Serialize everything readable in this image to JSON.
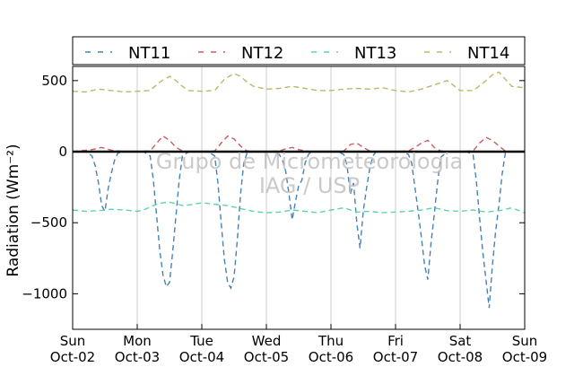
{
  "chart_data": {
    "type": "line",
    "ylabel": "Radiation (Wm⁻²)",
    "ylim": [
      -1250,
      600
    ],
    "yticks": [
      -1000,
      -500,
      0,
      500
    ],
    "ytick_labels": [
      "−1000",
      "−500",
      "0",
      "500"
    ],
    "xlim_days": [
      0,
      7
    ],
    "x_ticks": [
      {
        "day": "Sun",
        "date": "Oct-02"
      },
      {
        "day": "Mon",
        "date": "Oct-03"
      },
      {
        "day": "Tue",
        "date": "Oct-04"
      },
      {
        "day": "Wed",
        "date": "Oct-05"
      },
      {
        "day": "Thu",
        "date": "Oct-06"
      },
      {
        "day": "Fri",
        "date": "Oct-07"
      },
      {
        "day": "Sat",
        "date": "Oct-08"
      },
      {
        "day": "Sun",
        "date": "Oct-09"
      }
    ],
    "grid": "vertical",
    "legend_position": "top",
    "zero_line": true,
    "watermark": [
      "Grupo de Micrometeorologia",
      "IAG / USP"
    ],
    "series": [
      {
        "name": "NT11",
        "color": "#4682b4",
        "style": "dashed",
        "x": [
          0.0,
          0.2,
          0.3,
          0.35,
          0.4,
          0.45,
          0.5,
          0.55,
          0.6,
          0.65,
          0.7,
          0.8,
          0.9,
          1.0,
          1.1,
          1.2,
          1.25,
          1.3,
          1.35,
          1.4,
          1.45,
          1.5,
          1.55,
          1.6,
          1.65,
          1.7,
          1.8,
          1.9,
          2.0,
          2.1,
          2.2,
          2.25,
          2.3,
          2.35,
          2.4,
          2.45,
          2.5,
          2.55,
          2.6,
          2.65,
          2.7,
          2.8,
          2.9,
          3.0,
          3.1,
          3.2,
          3.25,
          3.3,
          3.35,
          3.4,
          3.45,
          3.5,
          3.55,
          3.6,
          3.65,
          3.7,
          3.8,
          3.9,
          4.0,
          4.1,
          4.2,
          4.25,
          4.3,
          4.35,
          4.4,
          4.45,
          4.5,
          4.55,
          4.6,
          4.65,
          4.7,
          4.8,
          4.9,
          5.0,
          5.1,
          5.2,
          5.25,
          5.3,
          5.35,
          5.4,
          5.45,
          5.5,
          5.55,
          5.6,
          5.65,
          5.7,
          5.8,
          5.9,
          6.0,
          6.1,
          6.2,
          6.25,
          6.3,
          6.35,
          6.4,
          6.45,
          6.5,
          6.55,
          6.6,
          6.65,
          6.7,
          6.8,
          7.0
        ],
        "y": [
          0,
          0,
          -30,
          -100,
          -220,
          -380,
          -420,
          -260,
          -150,
          -60,
          -10,
          0,
          0,
          0,
          0,
          -30,
          -200,
          -450,
          -700,
          -870,
          -950,
          -920,
          -700,
          -450,
          -200,
          -30,
          0,
          0,
          0,
          0,
          -30,
          -220,
          -500,
          -760,
          -920,
          -960,
          -880,
          -620,
          -300,
          -80,
          -10,
          0,
          0,
          0,
          0,
          -20,
          -60,
          -140,
          -300,
          -480,
          -350,
          -240,
          -200,
          -80,
          -20,
          0,
          0,
          0,
          0,
          0,
          -20,
          -100,
          -300,
          -220,
          -500,
          -680,
          -420,
          -260,
          -120,
          -30,
          0,
          0,
          0,
          0,
          0,
          -20,
          -80,
          -250,
          -420,
          -600,
          -800,
          -900,
          -640,
          -440,
          -220,
          -40,
          0,
          0,
          0,
          0,
          -20,
          -200,
          -460,
          -700,
          -900,
          -1100,
          -800,
          -560,
          -380,
          -160,
          -10,
          0,
          0
        ]
      },
      {
        "name": "NT12",
        "color": "#cd5c5c",
        "style": "dashed",
        "x": [
          0.0,
          0.3,
          0.45,
          0.6,
          0.8,
          1.0,
          1.2,
          1.3,
          1.4,
          1.5,
          1.6,
          1.7,
          1.8,
          2.0,
          2.2,
          2.3,
          2.4,
          2.5,
          2.6,
          2.7,
          2.8,
          3.0,
          3.2,
          3.3,
          3.4,
          3.5,
          3.6,
          3.7,
          3.8,
          4.0,
          4.2,
          4.3,
          4.4,
          4.5,
          4.6,
          4.7,
          4.8,
          5.0,
          5.2,
          5.3,
          5.4,
          5.5,
          5.6,
          5.7,
          5.8,
          6.0,
          6.2,
          6.3,
          6.4,
          6.5,
          6.6,
          6.7,
          6.8,
          7.0
        ],
        "y": [
          0,
          15,
          30,
          10,
          0,
          0,
          5,
          60,
          110,
          80,
          30,
          5,
          0,
          0,
          5,
          60,
          110,
          90,
          40,
          5,
          0,
          0,
          5,
          20,
          30,
          15,
          5,
          0,
          0,
          0,
          5,
          50,
          60,
          30,
          5,
          0,
          0,
          0,
          5,
          30,
          60,
          80,
          30,
          5,
          0,
          0,
          5,
          60,
          100,
          80,
          40,
          5,
          0,
          0
        ]
      },
      {
        "name": "NT13",
        "color": "#5fd4a8",
        "style": "dashed",
        "x": [
          0.0,
          0.2,
          0.4,
          0.6,
          0.8,
          1.0,
          1.1,
          1.2,
          1.3,
          1.4,
          1.5,
          1.6,
          1.7,
          1.8,
          2.0,
          2.2,
          2.4,
          2.6,
          2.8,
          3.0,
          3.2,
          3.4,
          3.6,
          3.8,
          4.0,
          4.2,
          4.4,
          4.6,
          4.8,
          5.0,
          5.2,
          5.4,
          5.6,
          5.8,
          6.0,
          6.2,
          6.4,
          6.6,
          6.8,
          7.0
        ],
        "y": [
          -410,
          -420,
          -415,
          -405,
          -410,
          -420,
          -410,
          -390,
          -370,
          -360,
          -355,
          -365,
          -380,
          -375,
          -360,
          -370,
          -380,
          -400,
          -420,
          -430,
          -425,
          -410,
          -420,
          -430,
          -410,
          -395,
          -425,
          -420,
          -430,
          -425,
          -420,
          -410,
          -395,
          -415,
          -420,
          -410,
          -425,
          -415,
          -395,
          -430
        ]
      },
      {
        "name": "NT14",
        "color": "#bdb76b",
        "style": "dashed",
        "x": [
          0.0,
          0.2,
          0.4,
          0.6,
          0.8,
          1.0,
          1.2,
          1.35,
          1.5,
          1.6,
          1.7,
          1.8,
          2.0,
          2.2,
          2.35,
          2.5,
          2.6,
          2.7,
          2.8,
          3.0,
          3.2,
          3.4,
          3.6,
          3.8,
          4.0,
          4.2,
          4.4,
          4.6,
          4.8,
          5.0,
          5.2,
          5.4,
          5.6,
          5.8,
          6.0,
          6.2,
          6.35,
          6.5,
          6.6,
          6.7,
          6.8,
          7.0
        ],
        "y": [
          425,
          420,
          440,
          430,
          420,
          425,
          430,
          490,
          530,
          500,
          460,
          430,
          425,
          430,
          510,
          550,
          530,
          490,
          460,
          440,
          445,
          460,
          445,
          430,
          430,
          440,
          445,
          440,
          450,
          430,
          420,
          440,
          470,
          500,
          430,
          430,
          480,
          540,
          560,
          510,
          460,
          450
        ]
      }
    ]
  }
}
